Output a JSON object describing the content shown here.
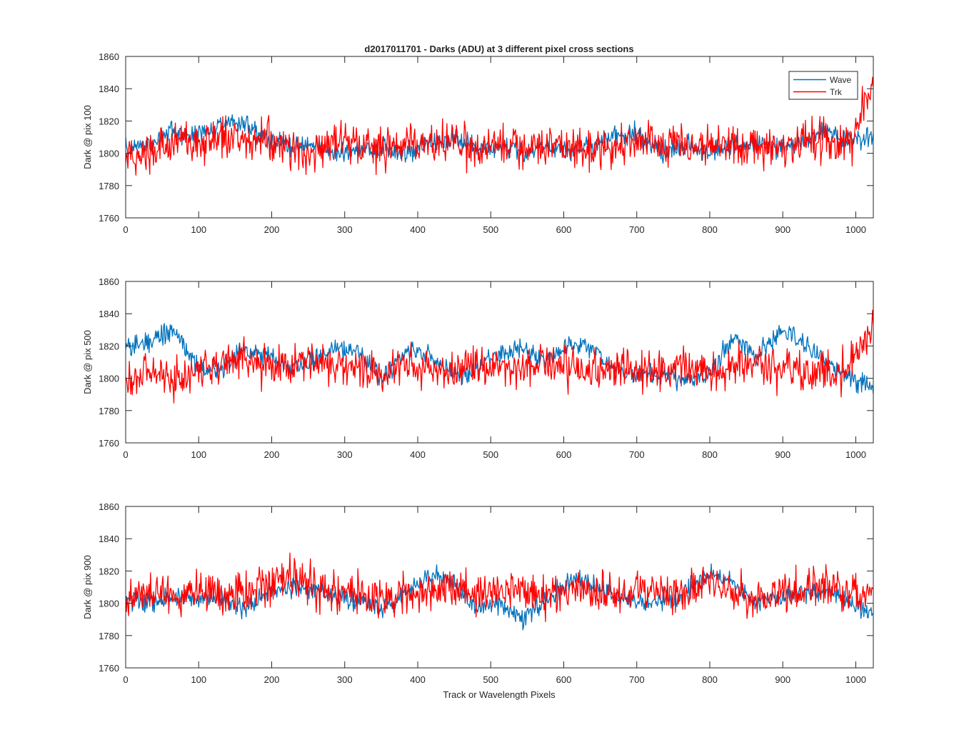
{
  "figure": {
    "title": "d2017011701 - Darks (ADU) at 3 different pixel cross sections",
    "xlabel": "Track or Wavelength Pixels"
  },
  "legend": {
    "placement": "top-right of first panel",
    "entries": [
      {
        "label": "Wave",
        "color": "#0072BD"
      },
      {
        "label": "Trk",
        "color": "#FF0000"
      }
    ]
  },
  "chart_data": [
    {
      "type": "line",
      "title": "d2017011701 - Darks (ADU) at 3 different pixel cross sections",
      "xlabel": "",
      "ylabel": "Dark @ pix 100",
      "xlim": [
        0,
        1024
      ],
      "ylim": [
        1760,
        1860
      ],
      "xticks": [
        0,
        100,
        200,
        300,
        400,
        500,
        600,
        700,
        800,
        900,
        1000
      ],
      "yticks": [
        1760,
        1780,
        1800,
        1820,
        1840,
        1860
      ],
      "grid": false,
      "series": [
        {
          "name": "Wave",
          "color": "#0072BD",
          "x": [
            0,
            32,
            64,
            96,
            128,
            160,
            192,
            224,
            256,
            288,
            320,
            352,
            384,
            416,
            448,
            480,
            512,
            544,
            576,
            608,
            640,
            672,
            704,
            736,
            768,
            800,
            832,
            864,
            896,
            928,
            960,
            992,
            1024
          ],
          "y": [
            1803,
            1806,
            1814,
            1811,
            1816,
            1820,
            1808,
            1804,
            1806,
            1799,
            1802,
            1804,
            1800,
            1806,
            1810,
            1803,
            1806,
            1801,
            1804,
            1801,
            1806,
            1810,
            1812,
            1800,
            1806,
            1801,
            1804,
            1806,
            1803,
            1806,
            1814,
            1808,
            1812
          ]
        },
        {
          "name": "Trk",
          "color": "#FF0000",
          "x": [
            0,
            32,
            64,
            96,
            128,
            160,
            192,
            224,
            256,
            288,
            320,
            352,
            384,
            416,
            448,
            480,
            512,
            544,
            576,
            608,
            640,
            672,
            704,
            736,
            768,
            800,
            832,
            864,
            896,
            928,
            960,
            992,
            1024
          ],
          "y": [
            1796,
            1803,
            1807,
            1804,
            1812,
            1806,
            1810,
            1802,
            1801,
            1808,
            1806,
            1803,
            1806,
            1804,
            1808,
            1801,
            1806,
            1804,
            1802,
            1806,
            1803,
            1806,
            1808,
            1804,
            1808,
            1806,
            1802,
            1806,
            1804,
            1808,
            1806,
            1804,
            1842
          ]
        }
      ]
    },
    {
      "type": "line",
      "title": "",
      "xlabel": "",
      "ylabel": "Dark @ pix 500",
      "xlim": [
        0,
        1024
      ],
      "ylim": [
        1760,
        1860
      ],
      "xticks": [
        0,
        100,
        200,
        300,
        400,
        500,
        600,
        700,
        800,
        900,
        1000
      ],
      "yticks": [
        1760,
        1780,
        1800,
        1820,
        1840,
        1860
      ],
      "grid": false,
      "series": [
        {
          "name": "Wave",
          "color": "#0072BD",
          "x": [
            0,
            32,
            64,
            96,
            128,
            160,
            192,
            224,
            256,
            288,
            320,
            352,
            384,
            416,
            448,
            480,
            512,
            544,
            576,
            608,
            640,
            672,
            704,
            736,
            768,
            800,
            832,
            864,
            896,
            928,
            960,
            992,
            1024
          ],
          "y": [
            1820,
            1823,
            1831,
            1808,
            1804,
            1818,
            1815,
            1806,
            1810,
            1818,
            1816,
            1798,
            1818,
            1814,
            1802,
            1806,
            1816,
            1818,
            1810,
            1822,
            1818,
            1806,
            1802,
            1803,
            1798,
            1803,
            1826,
            1813,
            1828,
            1823,
            1810,
            1800,
            1796
          ]
        },
        {
          "name": "Trk",
          "color": "#FF0000",
          "x": [
            0,
            32,
            64,
            96,
            128,
            160,
            192,
            224,
            256,
            288,
            320,
            352,
            384,
            416,
            448,
            480,
            512,
            544,
            576,
            608,
            640,
            672,
            704,
            736,
            768,
            800,
            832,
            864,
            896,
            928,
            960,
            992,
            1024
          ],
          "y": [
            1796,
            1806,
            1800,
            1804,
            1810,
            1813,
            1808,
            1806,
            1812,
            1808,
            1806,
            1800,
            1808,
            1806,
            1804,
            1808,
            1806,
            1804,
            1808,
            1806,
            1804,
            1806,
            1804,
            1802,
            1806,
            1804,
            1806,
            1810,
            1804,
            1806,
            1804,
            1806,
            1834
          ]
        }
      ]
    },
    {
      "type": "line",
      "title": "",
      "xlabel": "Track or Wavelength Pixels",
      "ylabel": "Dark @ pix 900",
      "xlim": [
        0,
        1024
      ],
      "ylim": [
        1760,
        1860
      ],
      "xticks": [
        0,
        100,
        200,
        300,
        400,
        500,
        600,
        700,
        800,
        900,
        1000
      ],
      "yticks": [
        1760,
        1780,
        1800,
        1820,
        1840,
        1860
      ],
      "grid": false,
      "series": [
        {
          "name": "Wave",
          "color": "#0072BD",
          "x": [
            0,
            32,
            64,
            96,
            128,
            160,
            192,
            224,
            256,
            288,
            320,
            352,
            384,
            416,
            448,
            480,
            512,
            544,
            576,
            608,
            640,
            672,
            704,
            736,
            768,
            800,
            832,
            864,
            896,
            928,
            960,
            992,
            1024
          ],
          "y": [
            1803,
            1800,
            1804,
            1802,
            1804,
            1796,
            1806,
            1810,
            1808,
            1804,
            1800,
            1798,
            1808,
            1818,
            1814,
            1796,
            1800,
            1790,
            1802,
            1814,
            1812,
            1804,
            1800,
            1802,
            1806,
            1818,
            1812,
            1800,
            1804,
            1806,
            1808,
            1800,
            1793
          ]
        },
        {
          "name": "Trk",
          "color": "#FF0000",
          "x": [
            0,
            32,
            64,
            96,
            128,
            160,
            192,
            224,
            256,
            288,
            320,
            352,
            384,
            416,
            448,
            480,
            512,
            544,
            576,
            608,
            640,
            672,
            704,
            736,
            768,
            800,
            832,
            864,
            896,
            928,
            960,
            992,
            1024
          ],
          "y": [
            1804,
            1806,
            1804,
            1808,
            1806,
            1808,
            1812,
            1816,
            1810,
            1806,
            1808,
            1804,
            1808,
            1806,
            1810,
            1804,
            1808,
            1806,
            1804,
            1808,
            1806,
            1804,
            1808,
            1806,
            1808,
            1812,
            1806,
            1804,
            1808,
            1806,
            1812,
            1806,
            1810
          ]
        }
      ]
    }
  ]
}
